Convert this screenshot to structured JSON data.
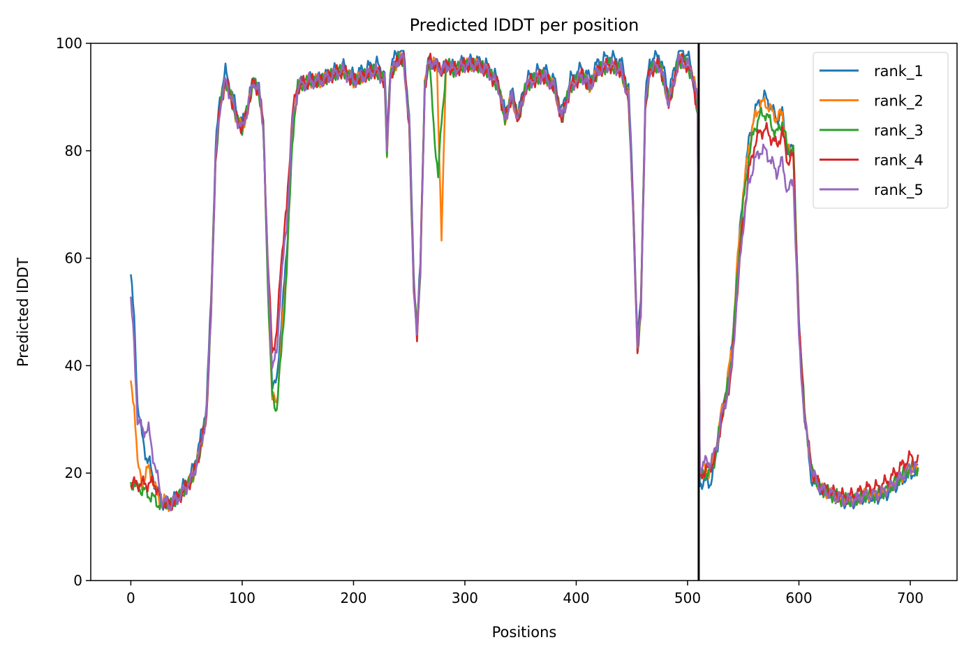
{
  "chart_data": {
    "type": "line",
    "title": "Predicted lDDT per position",
    "xlabel": "Positions",
    "ylabel": "Predicted lDDT",
    "xlim": [
      -36,
      742
    ],
    "ylim": [
      0,
      100
    ],
    "xticks": [
      0,
      100,
      200,
      300,
      400,
      500,
      600,
      700
    ],
    "yticks": [
      0,
      20,
      40,
      60,
      80,
      100
    ],
    "grid": false,
    "legend_position": "top-right",
    "vline_x": 510,
    "profile": [
      [
        0,
        52
      ],
      [
        3,
        44
      ],
      [
        6,
        30
      ],
      [
        10,
        28
      ],
      [
        16,
        28
      ],
      [
        22,
        21
      ],
      [
        28,
        15
      ],
      [
        35,
        14
      ],
      [
        45,
        16
      ],
      [
        55,
        19
      ],
      [
        62,
        24
      ],
      [
        68,
        31
      ],
      [
        72,
        50
      ],
      [
        76,
        78
      ],
      [
        80,
        88
      ],
      [
        85,
        93
      ],
      [
        90,
        90
      ],
      [
        95,
        86
      ],
      [
        100,
        84
      ],
      [
        105,
        88
      ],
      [
        110,
        93
      ],
      [
        115,
        91
      ],
      [
        119,
        85
      ],
      [
        123,
        58
      ],
      [
        127,
        40
      ],
      [
        131,
        42
      ],
      [
        135,
        56
      ],
      [
        140,
        66
      ],
      [
        145,
        85
      ],
      [
        150,
        92
      ],
      [
        160,
        93
      ],
      [
        170,
        93
      ],
      [
        180,
        94
      ],
      [
        190,
        95
      ],
      [
        200,
        93
      ],
      [
        210,
        94
      ],
      [
        220,
        95
      ],
      [
        228,
        93
      ],
      [
        230,
        80
      ],
      [
        233,
        94
      ],
      [
        240,
        97
      ],
      [
        245,
        97
      ],
      [
        250,
        85
      ],
      [
        254,
        55
      ],
      [
        257,
        46
      ],
      [
        260,
        58
      ],
      [
        264,
        92
      ],
      [
        268,
        97
      ],
      [
        273,
        96
      ],
      [
        280,
        95
      ],
      [
        285,
        96
      ],
      [
        290,
        95
      ],
      [
        300,
        96
      ],
      [
        310,
        96
      ],
      [
        320,
        95
      ],
      [
        330,
        92
      ],
      [
        336,
        86
      ],
      [
        342,
        90
      ],
      [
        348,
        86
      ],
      [
        355,
        92
      ],
      [
        360,
        93
      ],
      [
        370,
        94
      ],
      [
        380,
        92
      ],
      [
        387,
        86
      ],
      [
        395,
        92
      ],
      [
        405,
        94
      ],
      [
        412,
        92
      ],
      [
        420,
        95
      ],
      [
        430,
        96
      ],
      [
        440,
        95
      ],
      [
        447,
        90
      ],
      [
        451,
        70
      ],
      [
        455,
        43
      ],
      [
        458,
        50
      ],
      [
        462,
        88
      ],
      [
        466,
        95
      ],
      [
        475,
        96
      ],
      [
        483,
        89
      ],
      [
        487,
        92
      ],
      [
        492,
        97
      ],
      [
        500,
        96
      ],
      [
        505,
        94
      ],
      [
        509,
        89
      ],
      [
        511,
        21
      ],
      [
        515,
        22
      ],
      [
        520,
        22
      ],
      [
        525,
        24
      ],
      [
        530,
        30
      ],
      [
        535,
        34
      ],
      [
        540,
        40
      ],
      [
        545,
        55
      ],
      [
        550,
        66
      ],
      [
        555,
        74
      ],
      [
        560,
        78
      ],
      [
        565,
        80
      ],
      [
        570,
        80
      ],
      [
        575,
        78
      ],
      [
        580,
        76
      ],
      [
        585,
        78
      ],
      [
        590,
        72
      ],
      [
        595,
        75
      ],
      [
        600,
        45
      ],
      [
        605,
        30
      ],
      [
        612,
        20
      ],
      [
        620,
        17
      ],
      [
        630,
        16
      ],
      [
        640,
        15
      ],
      [
        650,
        15
      ],
      [
        660,
        16
      ],
      [
        670,
        16
      ],
      [
        680,
        17
      ],
      [
        690,
        19
      ],
      [
        700,
        21
      ],
      [
        707,
        21
      ]
    ],
    "series": [
      {
        "name": "rank_1",
        "color": "#1f77b4",
        "offsets": [
          [
            0,
            5
          ],
          [
            5,
            4
          ],
          [
            15,
            -6
          ],
          [
            30,
            0
          ],
          [
            70,
            2
          ],
          [
            80,
            2
          ],
          [
            120,
            0
          ],
          [
            127,
            -3
          ],
          [
            135,
            -8
          ],
          [
            150,
            0
          ],
          [
            254,
            2
          ],
          [
            262,
            0
          ],
          [
            330,
            1
          ],
          [
            500,
            2
          ],
          [
            510,
            -3
          ],
          [
            511,
            -3
          ],
          [
            520,
            -4
          ],
          [
            530,
            0
          ],
          [
            545,
            5
          ],
          [
            560,
            9
          ],
          [
            570,
            10
          ],
          [
            580,
            10
          ],
          [
            590,
            8
          ],
          [
            600,
            3
          ],
          [
            610,
            -2
          ],
          [
            620,
            0
          ],
          [
            707,
            -1
          ]
        ]
      },
      {
        "name": "rank_2",
        "color": "#ff7f0e",
        "offsets": [
          [
            0,
            -16
          ],
          [
            5,
            -8
          ],
          [
            10,
            -10
          ],
          [
            20,
            -5
          ],
          [
            30,
            0
          ],
          [
            70,
            0
          ],
          [
            120,
            0
          ],
          [
            127,
            -6
          ],
          [
            135,
            -12
          ],
          [
            145,
            -2
          ],
          [
            150,
            0
          ],
          [
            275,
            0
          ],
          [
            279,
            -32
          ],
          [
            283,
            0
          ],
          [
            500,
            0
          ],
          [
            510,
            0
          ],
          [
            520,
            -2
          ],
          [
            545,
            5
          ],
          [
            560,
            8
          ],
          [
            570,
            9
          ],
          [
            580,
            10
          ],
          [
            590,
            8
          ],
          [
            600,
            2
          ],
          [
            610,
            0
          ],
          [
            707,
            0
          ]
        ]
      },
      {
        "name": "rank_3",
        "color": "#2ca02c",
        "offsets": [
          [
            0,
            -34
          ],
          [
            3,
            -26
          ],
          [
            6,
            -13
          ],
          [
            10,
            -11
          ],
          [
            16,
            -12
          ],
          [
            22,
            -6
          ],
          [
            30,
            0
          ],
          [
            70,
            0
          ],
          [
            120,
            0
          ],
          [
            127,
            -6
          ],
          [
            135,
            -14
          ],
          [
            145,
            -3
          ],
          [
            150,
            0
          ],
          [
            268,
            0
          ],
          [
            272,
            -12
          ],
          [
            276,
            -20
          ],
          [
            279,
            -10
          ],
          [
            283,
            0
          ],
          [
            500,
            0
          ],
          [
            510,
            -2
          ],
          [
            520,
            -2
          ],
          [
            545,
            3
          ],
          [
            560,
            6
          ],
          [
            570,
            7
          ],
          [
            580,
            7
          ],
          [
            590,
            8
          ],
          [
            600,
            3
          ],
          [
            610,
            0
          ],
          [
            707,
            0
          ]
        ]
      },
      {
        "name": "rank_4",
        "color": "#d62728",
        "offsets": [
          [
            0,
            -34
          ],
          [
            3,
            -26
          ],
          [
            6,
            -12
          ],
          [
            10,
            -10
          ],
          [
            16,
            -10
          ],
          [
            22,
            -3
          ],
          [
            30,
            0
          ],
          [
            70,
            0
          ],
          [
            120,
            0
          ],
          [
            127,
            3
          ],
          [
            135,
            4
          ],
          [
            145,
            2
          ],
          [
            150,
            0
          ],
          [
            500,
            0
          ],
          [
            510,
            -2
          ],
          [
            520,
            -1
          ],
          [
            545,
            0
          ],
          [
            560,
            3
          ],
          [
            570,
            4
          ],
          [
            580,
            5
          ],
          [
            590,
            6
          ],
          [
            600,
            2
          ],
          [
            610,
            0
          ],
          [
            700,
            2
          ],
          [
            707,
            1
          ]
        ]
      },
      {
        "name": "rank_5",
        "color": "#9467bd",
        "offsets": [
          [
            0,
            0
          ],
          [
            707,
            0
          ]
        ]
      }
    ]
  }
}
